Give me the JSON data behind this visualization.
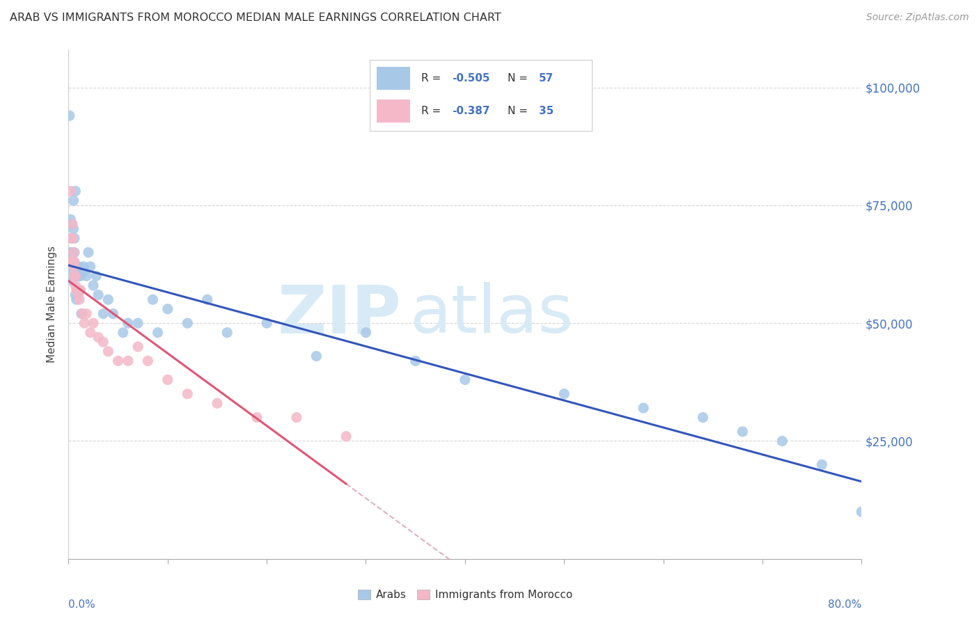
{
  "title": "ARAB VS IMMIGRANTS FROM MOROCCO MEDIAN MALE EARNINGS CORRELATION CHART",
  "source": "Source: ZipAtlas.com",
  "ylabel": "Median Male Earnings",
  "yaxis_labels": [
    "$100,000",
    "$75,000",
    "$50,000",
    "$25,000"
  ],
  "yaxis_values": [
    100000,
    75000,
    50000,
    25000
  ],
  "xlim": [
    0.0,
    0.8
  ],
  "ylim": [
    0,
    108000
  ],
  "arab_scatter_color": "#a8c8e8",
  "morocco_scatter_color": "#f4b8c8",
  "arab_line_color": "#3355bb",
  "morocco_line_color": "#e05575",
  "dashed_line_color": "#e0b0c0",
  "legend_r1": "R = ",
  "legend_v1": "-0.505",
  "legend_n1": "N = ",
  "legend_nv1": "57",
  "legend_r2": "R = ",
  "legend_v2": "-0.387",
  "legend_n2": "N = ",
  "legend_nv2": "35",
  "legend_color": "#4472c4",
  "legend_text_color": "#333333",
  "watermark_color": "#d8eaf5",
  "arab_x": [
    0.001,
    0.002,
    0.002,
    0.003,
    0.003,
    0.003,
    0.004,
    0.004,
    0.004,
    0.005,
    0.005,
    0.005,
    0.006,
    0.006,
    0.006,
    0.007,
    0.007,
    0.008,
    0.008,
    0.009,
    0.01,
    0.01,
    0.011,
    0.012,
    0.013,
    0.015,
    0.016,
    0.018,
    0.02,
    0.022,
    0.025,
    0.028,
    0.03,
    0.035,
    0.04,
    0.045,
    0.055,
    0.06,
    0.07,
    0.085,
    0.09,
    0.1,
    0.12,
    0.14,
    0.16,
    0.2,
    0.25,
    0.3,
    0.35,
    0.4,
    0.5,
    0.58,
    0.64,
    0.68,
    0.72,
    0.76,
    0.8
  ],
  "arab_y": [
    94000,
    65000,
    72000,
    68000,
    63000,
    71000,
    65000,
    61000,
    59000,
    63000,
    76000,
    70000,
    65000,
    60000,
    68000,
    56000,
    78000,
    62000,
    55000,
    60000,
    62000,
    57000,
    57000,
    60000,
    52000,
    62000,
    61000,
    60000,
    65000,
    62000,
    58000,
    60000,
    56000,
    52000,
    55000,
    52000,
    48000,
    50000,
    50000,
    55000,
    48000,
    53000,
    50000,
    55000,
    48000,
    50000,
    43000,
    48000,
    42000,
    38000,
    35000,
    32000,
    30000,
    27000,
    25000,
    20000,
    10000
  ],
  "morocco_x": [
    0.001,
    0.002,
    0.003,
    0.003,
    0.004,
    0.004,
    0.005,
    0.005,
    0.006,
    0.006,
    0.007,
    0.007,
    0.008,
    0.009,
    0.01,
    0.011,
    0.012,
    0.014,
    0.016,
    0.018,
    0.022,
    0.025,
    0.03,
    0.035,
    0.04,
    0.05,
    0.06,
    0.07,
    0.08,
    0.1,
    0.12,
    0.15,
    0.19,
    0.23,
    0.28
  ],
  "morocco_y": [
    63000,
    78000,
    68000,
    63000,
    68000,
    71000,
    65000,
    62000,
    63000,
    60000,
    60000,
    58000,
    57000,
    57000,
    56000,
    55000,
    57000,
    52000,
    50000,
    52000,
    48000,
    50000,
    47000,
    46000,
    44000,
    42000,
    42000,
    45000,
    42000,
    38000,
    35000,
    33000,
    30000,
    30000,
    26000
  ]
}
